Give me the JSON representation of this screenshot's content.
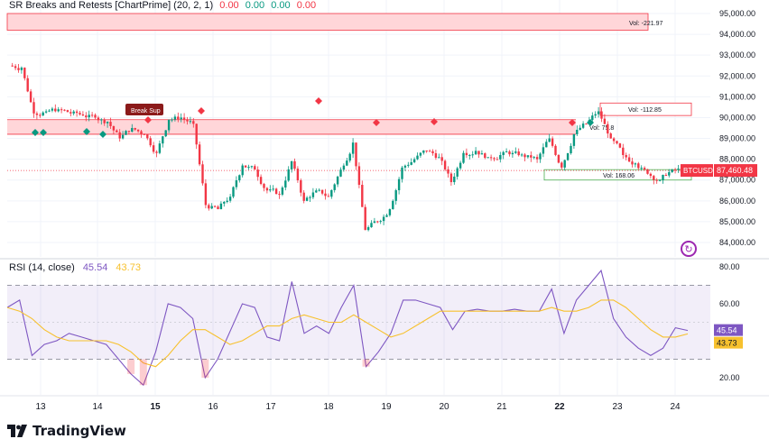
{
  "indicator": {
    "name": "SR Breaks and Retests [ChartPrime] (20, 2, 1)",
    "values": [
      "0.00",
      "0.00",
      "0.00",
      "0.00"
    ]
  },
  "rsi_indicator": {
    "name": "RSI (14, close)",
    "rsi_value": "45.54",
    "ma_value": "43.73"
  },
  "price_axis": {
    "labels": [
      "95,000.00",
      "94,000.00",
      "93,000.00",
      "92,000.00",
      "91,000.00",
      "90,000.00",
      "89,000.00",
      "88,000.00",
      "87,000.00",
      "86,000.00",
      "85,000.00",
      "84,000.00"
    ],
    "current_symbol": "BTCUSD",
    "current_price": "87,460.48"
  },
  "rsi_axis": {
    "labels": [
      "80.00",
      "60.00",
      "20.00"
    ],
    "rsi_tag": "45.54",
    "ma_tag": "43.73"
  },
  "time_axis": {
    "labels": [
      "13",
      "14",
      "15",
      "16",
      "17",
      "18",
      "19",
      "20",
      "21",
      "22",
      "23",
      "24"
    ],
    "bold": [
      "15",
      "22"
    ]
  },
  "zones": {
    "resistance_vol": "Vol: -221.97",
    "current_res_vol": "Vol: -112.85",
    "support_vol": "Vol: 168.06",
    "mid_vol": "Vol: 75.8",
    "break_label": "Break Sup"
  },
  "brand": {
    "name": "TradingView"
  },
  "icons": {
    "undo": "replay-icon",
    "logo": "tradingview-logo-icon"
  },
  "colors": {
    "up": "#089981",
    "down": "#f23645",
    "rsi": "#7e57c2",
    "rsi_ma": "#f7c12e",
    "zone_fill": "#ffd6d9",
    "support": "#4caf50"
  },
  "chart_data": [
    {
      "type": "candlestick",
      "title": "",
      "symbol": "BTCUSD",
      "x": [
        "13",
        "14",
        "15",
        "16",
        "17",
        "18",
        "19",
        "20",
        "21",
        "22",
        "23",
        "24"
      ],
      "ylim": [
        83500,
        95500
      ],
      "close_series": [
        92500,
        92400,
        90200,
        90300,
        90400,
        90200,
        90100,
        90000,
        89800,
        89000,
        89500,
        89200,
        88300,
        89900,
        90000,
        89700,
        85800,
        85600,
        86200,
        87700,
        87500,
        86500,
        86300,
        87900,
        86000,
        86500,
        86200,
        87500,
        88800,
        84600,
        85000,
        85600,
        87600,
        88000,
        88400,
        88100,
        86900,
        88300,
        88400,
        88100,
        88200,
        88300,
        88100,
        88000,
        89000,
        87600,
        89200,
        89700,
        90300,
        89000,
        88200,
        87800,
        87300,
        87000,
        87500,
        87460
      ],
      "last_price": 87460.48,
      "zones": [
        {
          "label": "Vol: -221.97",
          "top": 95000,
          "bottom": 94200
        },
        {
          "label": "Break Sup",
          "top": 89900,
          "bottom": 89200
        },
        {
          "label": "Vol: -112.85",
          "top": 90700,
          "bottom": 90100
        },
        {
          "label": "Vol: 168.06",
          "top": 87500,
          "bottom": 87000
        }
      ]
    },
    {
      "type": "line",
      "title": "RSI (14, close)",
      "ylim": [
        10,
        85
      ],
      "bands": [
        70,
        30
      ],
      "series": [
        {
          "name": "RSI",
          "values": [
            58,
            62,
            32,
            38,
            40,
            44,
            42,
            40,
            38,
            30,
            22,
            16,
            34,
            60,
            58,
            52,
            20,
            30,
            45,
            60,
            58,
            42,
            40,
            72,
            44,
            48,
            44,
            58,
            70,
            26,
            34,
            44,
            62,
            62,
            60,
            58,
            46,
            56,
            57,
            56,
            56,
            57,
            56,
            56,
            68,
            44,
            62,
            70,
            78,
            52,
            42,
            36,
            32,
            36,
            47,
            45.54
          ]
        },
        {
          "name": "RSI-based MA",
          "values": [
            58,
            56,
            52,
            46,
            42,
            40,
            40,
            40,
            40,
            38,
            34,
            28,
            26,
            32,
            40,
            46,
            46,
            42,
            38,
            40,
            44,
            48,
            48,
            52,
            54,
            52,
            50,
            50,
            54,
            50,
            46,
            42,
            44,
            48,
            52,
            56,
            56,
            56,
            56,
            56,
            56,
            56,
            56,
            56,
            58,
            56,
            56,
            58,
            62,
            62,
            58,
            52,
            46,
            42,
            42,
            43.73
          ]
        }
      ]
    }
  ]
}
